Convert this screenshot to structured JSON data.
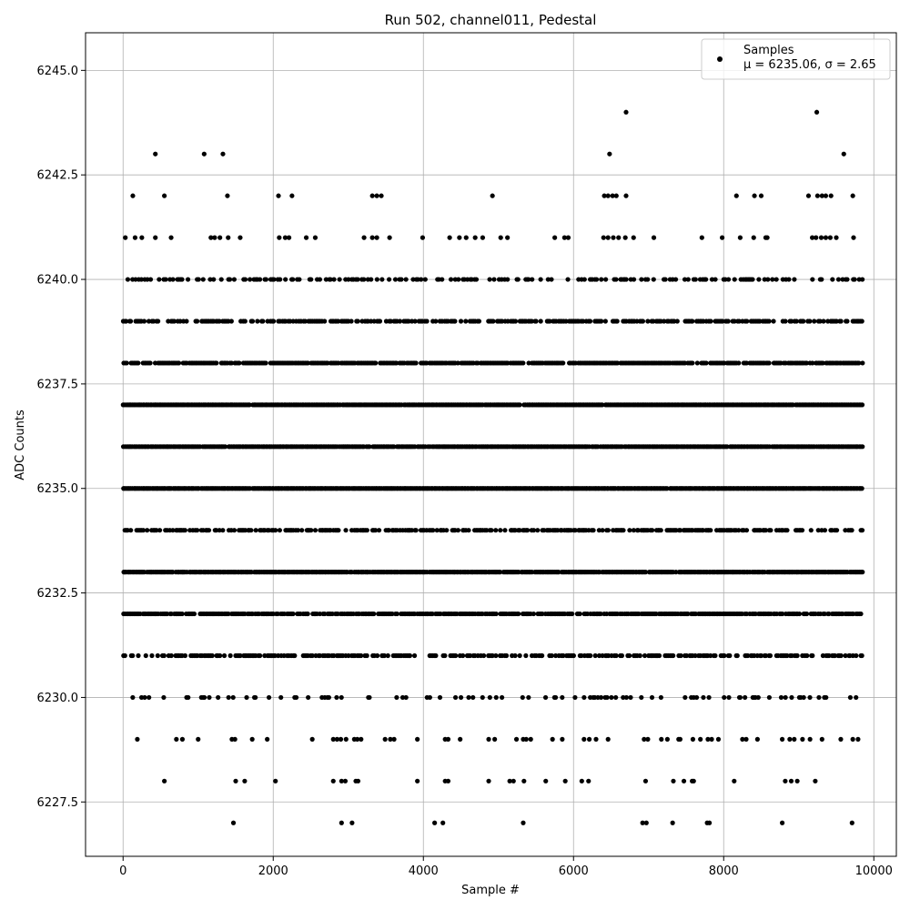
{
  "chart_data": {
    "type": "scatter",
    "title": "Run 502, channel011, Pedestal",
    "xlabel": "Sample #",
    "ylabel": "ADC Counts",
    "xlim": [
      -500,
      10300
    ],
    "ylim": [
      6226.2,
      6245.9
    ],
    "x_ticks": [
      0,
      2000,
      4000,
      6000,
      8000,
      10000
    ],
    "y_ticks": [
      6227.5,
      6230.0,
      6232.5,
      6235.0,
      6237.5,
      6240.0,
      6242.5,
      6245.0
    ],
    "x_tick_labels": [
      "0",
      "2000",
      "4000",
      "6000",
      "8000",
      "10000"
    ],
    "y_tick_labels": [
      "6227.5",
      "6230.0",
      "6232.5",
      "6235.0",
      "6237.5",
      "6240.0",
      "6242.5",
      "6245.0"
    ],
    "grid": true,
    "legend": {
      "position": "top-right",
      "label": "Samples",
      "sublabel": "μ = 6235.06, σ = 2.65"
    },
    "marker_color": "#000000",
    "sample_range": [
      0,
      9840
    ],
    "series": [
      {
        "name": "Samples",
        "levels": [
          {
            "y": 6227,
            "x": [
              1470,
              2910,
              3050,
              4150,
              4260,
              5330,
              6920,
              6970,
              7320,
              7780,
              7810,
              8780,
              9710
            ]
          },
          {
            "y": 6228,
            "x": [
              550,
              1500,
              1620,
              2030,
              2800,
              2910,
              2960,
              3100,
              3130,
              3920,
              4290,
              4330,
              4870,
              5150,
              5200,
              5340,
              5630,
              5890,
              6110,
              6200,
              6960,
              7330,
              7470,
              7580,
              7600,
              8140,
              8820,
              8900,
              8980,
              9220
            ]
          },
          {
            "y": 6229,
            "x": [
              190,
              710,
              790,
              1000,
              1450,
              1490,
              1720,
              1920,
              2520,
              2800,
              2850,
              2900,
              2970,
              3080,
              3120,
              3170,
              3490,
              3560,
              3610,
              3920,
              4290,
              4330,
              4490,
              4870,
              4950,
              5240,
              5330,
              5370,
              5430,
              5720,
              5850,
              6140,
              6210,
              6300,
              6460,
              6940,
              6990,
              7170,
              7250,
              7400,
              7420,
              7590,
              7690,
              7790,
              7840,
              7930,
              8250,
              8300,
              8450,
              8780,
              8880,
              8940,
              9050,
              9150,
              9310,
              9560,
              9720,
              9790
            ]
          },
          {
            "y": 6242,
            "x": [
              130,
              550,
              1390,
              2070,
              2250,
              3320,
              3380,
              3440,
              4920,
              6410,
              6460,
              6520,
              6570,
              6700,
              8170,
              8410,
              8500,
              9130,
              9250,
              9310,
              9360,
              9430,
              9720
            ]
          },
          {
            "y": 6243,
            "x": [
              430,
              1080,
              1330,
              6480,
              9600
            ]
          },
          {
            "y": 6244,
            "x": [
              6700,
              9240
            ]
          },
          {
            "y": 6241,
            "x": [
              30,
              160,
              250,
              430,
              640,
              1170,
              1220,
              1290,
              1400,
              1560,
              2080,
              2160,
              2210,
              2440,
              2560,
              3210,
              3320,
              3380,
              3550,
              3990,
              4350,
              4480,
              4570,
              4690,
              4790,
              5030,
              5120,
              5750,
              5880,
              5930,
              6400,
              6460,
              6530,
              6600,
              6690,
              6800,
              7070,
              7710,
              7980,
              8220,
              8400,
              8560,
              8580,
              9180,
              9230,
              9300,
              9360,
              9420,
              9500,
              9730
            ]
          }
        ],
        "dense_levels": [
          6229,
          6230,
          6231,
          6232,
          6233,
          6234,
          6235,
          6236,
          6237,
          6238,
          6239,
          6240
        ]
      }
    ]
  }
}
